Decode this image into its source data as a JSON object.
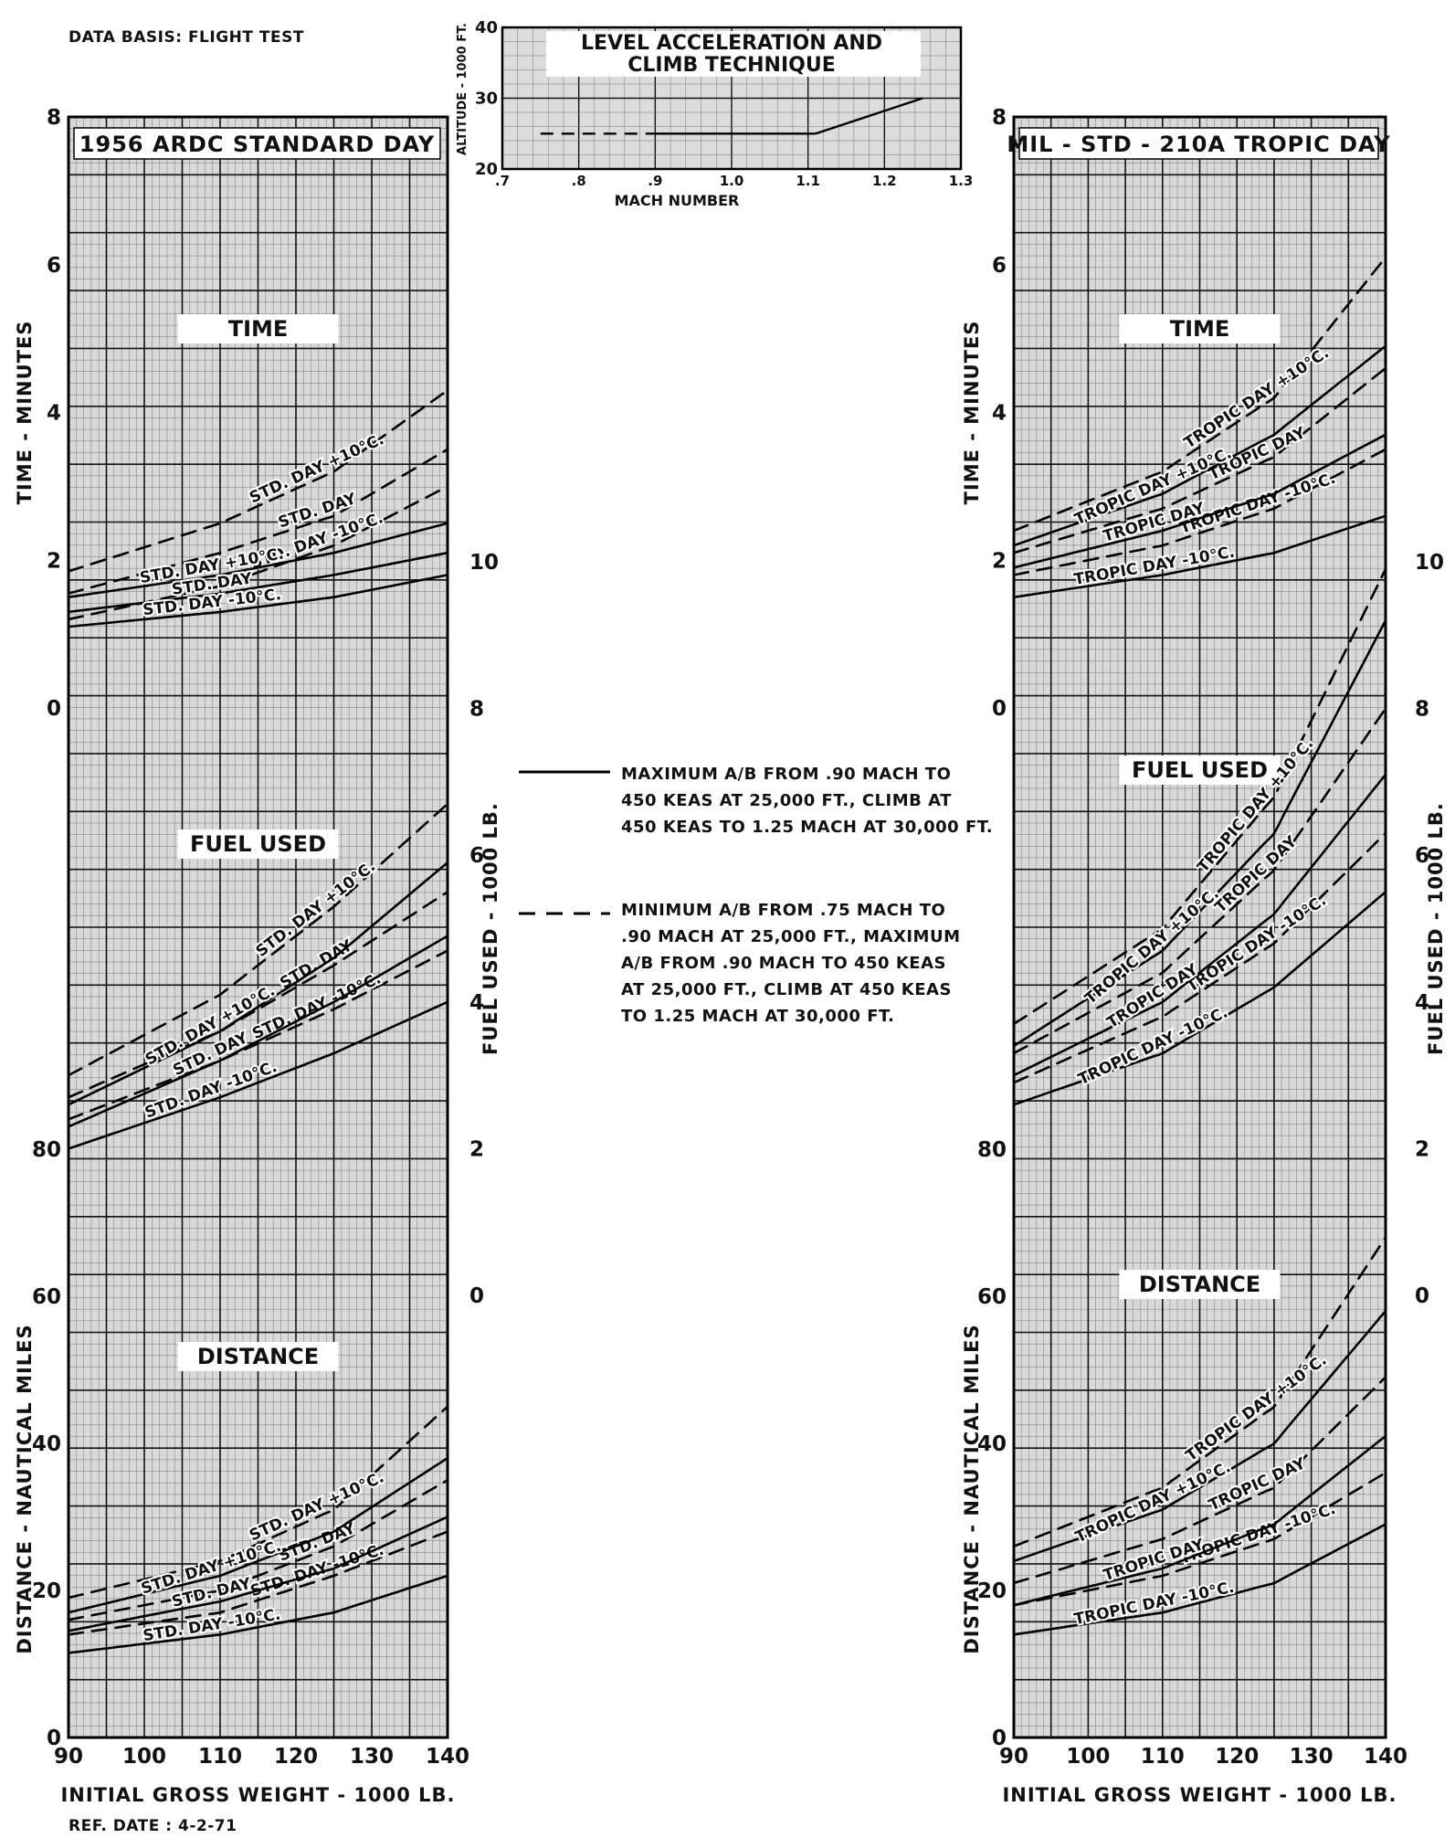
{
  "notes": {
    "data_basis": "DATA BASIS: FLIGHT TEST",
    "ref_date": "REF. DATE : 4-2-71"
  },
  "legend": {
    "solid_lines": [
      "MAXIMUM A/B FROM .90 MACH TO",
      "450 KEAS AT 25,000 FT., CLIMB AT",
      "450 KEAS TO 1.25 MACH AT 30,000 FT."
    ],
    "dashed_lines": [
      "MINIMUM A/B FROM .75 MACH TO",
      ".90 MACH AT 25,000 FT., MAXIMUM",
      "A/B FROM .90 MACH TO 450 KEAS",
      "AT 25,000 FT., CLIMB AT 450 KEAS",
      "TO 1.25 MACH AT 30,000 FT."
    ]
  },
  "chart_data": [
    {
      "type": "line",
      "title": "LEVEL ACCELERATION AND CLIMB TECHNIQUE",
      "title_lines": [
        "LEVEL ACCELERATION AND",
        "CLIMB TECHNIQUE"
      ],
      "xlabel": "MACH NUMBER",
      "ylabel": "ALTITUDE - 1000 FT.",
      "xlim": [
        0.7,
        1.3
      ],
      "ylim": [
        20,
        40
      ],
      "xticks": [
        0.7,
        0.8,
        0.9,
        1.0,
        1.1,
        1.2,
        1.3
      ],
      "xtick_labels": [
        ".7",
        ".8",
        ".9",
        "1.0",
        "1.1",
        "1.2",
        "1.3"
      ],
      "yticks": [
        20,
        30,
        40
      ],
      "ytick_labels": [
        "20",
        "30",
        "40"
      ],
      "grid": true,
      "series": [
        {
          "style": "dashed",
          "x": [
            0.75,
            0.9
          ],
          "y": [
            25,
            25
          ]
        },
        {
          "style": "solid",
          "x": [
            0.9,
            1.11,
            1.25
          ],
          "y": [
            25,
            25,
            30
          ]
        }
      ]
    },
    {
      "type": "line",
      "panel_title": "1956 ARDC STANDARD DAY",
      "xlabel": "INITIAL GROSS WEIGHT - 1000 LB.",
      "xlim": [
        90,
        140
      ],
      "xticks": [
        90,
        100,
        110,
        120,
        130,
        140
      ],
      "grid": true,
      "sections": [
        {
          "name": "TIME",
          "ylabel": "TIME - MINUTES",
          "axis_side": "left",
          "ylim": [
            0,
            8
          ],
          "yticks": [
            0,
            2,
            4,
            6,
            8
          ],
          "series": [
            {
              "label": "STD. DAY +10°C.",
              "style": "dashed",
              "x": [
                90,
                110,
                125,
                140
              ],
              "y": [
                1.85,
                2.5,
                3.2,
                4.3
              ]
            },
            {
              "label": "STD. DAY",
              "style": "dashed",
              "x": [
                90,
                110,
                125,
                140
              ],
              "y": [
                1.55,
                2.1,
                2.6,
                3.5
              ]
            },
            {
              "label": "STD. DAY -10°C.",
              "style": "dashed",
              "x": [
                90,
                110,
                125,
                140
              ],
              "y": [
                1.2,
                1.65,
                2.2,
                3.0
              ]
            },
            {
              "label": "STD. DAY +10°C.",
              "style": "solid",
              "x": [
                90,
                110,
                125,
                140
              ],
              "y": [
                1.5,
                1.8,
                2.1,
                2.5
              ]
            },
            {
              "label": "STD. DAY",
              "style": "solid",
              "x": [
                90,
                110,
                125,
                140
              ],
              "y": [
                1.3,
                1.55,
                1.8,
                2.1
              ]
            },
            {
              "label": "STD. DAY -10°C.",
              "style": "solid",
              "x": [
                90,
                110,
                125,
                140
              ],
              "y": [
                1.1,
                1.3,
                1.5,
                1.8
              ]
            }
          ]
        },
        {
          "name": "FUEL USED",
          "ylabel": "FUEL USED - 1000 LB.",
          "axis_side": "right",
          "ylim": [
            0,
            10
          ],
          "yticks": [
            0,
            2,
            4,
            6,
            8,
            10
          ],
          "series": [
            {
              "label": "STD. DAY +10°C.",
              "style": "dashed",
              "x": [
                90,
                110,
                125,
                140
              ],
              "y": [
                3.0,
                4.1,
                5.3,
                6.7
              ]
            },
            {
              "label": "STD. DAY",
              "style": "dashed",
              "x": [
                90,
                110,
                125,
                140
              ],
              "y": [
                2.7,
                3.6,
                4.5,
                5.5
              ]
            },
            {
              "label": "STD. DAY -10°C.",
              "style": "dashed",
              "x": [
                90,
                110,
                125,
                140
              ],
              "y": [
                2.4,
                3.2,
                3.9,
                4.7
              ]
            },
            {
              "label": "STD. DAY +10°C.",
              "style": "solid",
              "x": [
                90,
                110,
                125,
                140
              ],
              "y": [
                2.6,
                3.6,
                4.6,
                5.9
              ]
            },
            {
              "label": "STD. DAY",
              "style": "solid",
              "x": [
                90,
                110,
                125,
                140
              ],
              "y": [
                2.3,
                3.2,
                4.0,
                4.9
              ]
            },
            {
              "label": "STD. DAY -10°C.",
              "style": "solid",
              "x": [
                90,
                110,
                125,
                140
              ],
              "y": [
                2.0,
                2.7,
                3.3,
                4.0
              ]
            }
          ]
        },
        {
          "name": "DISTANCE",
          "ylabel": "DISTANCE - NAUTICAL MILES",
          "axis_side": "left",
          "ylim": [
            0,
            80
          ],
          "yticks": [
            0,
            20,
            40,
            60,
            80
          ],
          "series": [
            {
              "label": "STD. DAY +10°C.",
              "style": "dashed",
              "x": [
                90,
                110,
                125,
                140
              ],
              "y": [
                19,
                24,
                31,
                45
              ]
            },
            {
              "label": "STD. DAY",
              "style": "dashed",
              "x": [
                90,
                110,
                125,
                140
              ],
              "y": [
                16,
                20,
                26,
                35
              ]
            },
            {
              "label": "STD. DAY -10°C.",
              "style": "dashed",
              "x": [
                90,
                110,
                125,
                140
              ],
              "y": [
                14,
                17,
                22,
                28
              ]
            },
            {
              "label": "STD. DAY +10°C.",
              "style": "solid",
              "x": [
                90,
                110,
                125,
                140
              ],
              "y": [
                17,
                22,
                28,
                38
              ]
            },
            {
              "label": "STD. DAY",
              "style": "solid",
              "x": [
                90,
                110,
                125,
                140
              ],
              "y": [
                14.5,
                18.5,
                23,
                30
              ]
            },
            {
              "label": "STD. DAY -10°C.",
              "style": "solid",
              "x": [
                90,
                110,
                125,
                140
              ],
              "y": [
                11.5,
                14,
                17,
                22
              ]
            }
          ]
        }
      ]
    },
    {
      "type": "line",
      "panel_title": "MIL - STD - 210A TROPIC DAY",
      "xlabel": "INITIAL GROSS WEIGHT - 1000 LB.",
      "xlim": [
        90,
        140
      ],
      "xticks": [
        90,
        100,
        110,
        120,
        130,
        140
      ],
      "grid": true,
      "sections": [
        {
          "name": "TIME",
          "ylabel": "TIME - MINUTES",
          "axis_side": "left",
          "ylim": [
            0,
            8
          ],
          "yticks": [
            0,
            2,
            4,
            6,
            8
          ],
          "series": [
            {
              "label": "TROPIC DAY +10°C.",
              "style": "dashed",
              "x": [
                90,
                110,
                125,
                140
              ],
              "y": [
                2.4,
                3.2,
                4.2,
                6.1
              ]
            },
            {
              "label": "TROPIC DAY",
              "style": "dashed",
              "x": [
                90,
                110,
                125,
                140
              ],
              "y": [
                2.1,
                2.7,
                3.4,
                4.6
              ]
            },
            {
              "label": "TROPIC DAY -10°C.",
              "style": "dashed",
              "x": [
                90,
                110,
                125,
                140
              ],
              "y": [
                1.8,
                2.2,
                2.7,
                3.5
              ]
            },
            {
              "label": "TROPIC DAY +10°C.",
              "style": "solid",
              "x": [
                90,
                110,
                125,
                140
              ],
              "y": [
                2.2,
                2.9,
                3.7,
                4.9
              ]
            },
            {
              "label": "TROPIC DAY",
              "style": "solid",
              "x": [
                90,
                110,
                125,
                140
              ],
              "y": [
                1.9,
                2.4,
                2.9,
                3.7
              ]
            },
            {
              "label": "TROPIC DAY -10°C.",
              "style": "solid",
              "x": [
                90,
                110,
                125,
                140
              ],
              "y": [
                1.5,
                1.8,
                2.1,
                2.6
              ]
            }
          ]
        },
        {
          "name": "FUEL USED",
          "ylabel": "FUEL USED - 1000 LB.",
          "axis_side": "right",
          "ylim": [
            0,
            10
          ],
          "yticks": [
            0,
            2,
            4,
            6,
            8,
            10
          ],
          "series": [
            {
              "label": "TROPIC DAY +10°C.",
              "style": "dashed",
              "x": [
                90,
                110,
                125,
                140
              ],
              "y": [
                3.7,
                5.0,
                6.8,
                9.9
              ]
            },
            {
              "label": "TROPIC DAY",
              "style": "dashed",
              "x": [
                90,
                110,
                125,
                140
              ],
              "y": [
                3.3,
                4.4,
                5.8,
                8.0
              ]
            },
            {
              "label": "TROPIC DAY -10°C.",
              "style": "dashed",
              "x": [
                90,
                110,
                125,
                140
              ],
              "y": [
                2.9,
                3.8,
                4.8,
                6.3
              ]
            },
            {
              "label": "TROPIC DAY +10°C.",
              "style": "solid",
              "x": [
                90,
                110,
                125,
                140
              ],
              "y": [
                3.4,
                4.7,
                6.3,
                9.2
              ]
            },
            {
              "label": "TROPIC DAY",
              "style": "solid",
              "x": [
                90,
                110,
                125,
                140
              ],
              "y": [
                3.0,
                4.0,
                5.2,
                7.1
              ]
            },
            {
              "label": "TROPIC DAY -10°C.",
              "style": "solid",
              "x": [
                90,
                110,
                125,
                140
              ],
              "y": [
                2.6,
                3.3,
                4.2,
                5.5
              ]
            }
          ]
        },
        {
          "name": "DISTANCE",
          "ylabel": "DISTANCE - NAUTICAL MILES",
          "axis_side": "left",
          "ylim": [
            0,
            80
          ],
          "yticks": [
            0,
            20,
            40,
            60,
            80
          ],
          "series": [
            {
              "label": "TROPIC DAY +10°C.",
              "style": "dashed",
              "x": [
                90,
                110,
                125,
                140
              ],
              "y": [
                26,
                34,
                45,
                68
              ]
            },
            {
              "label": "TROPIC DAY",
              "style": "dashed",
              "x": [
                90,
                110,
                125,
                140
              ],
              "y": [
                21,
                27,
                34,
                49
              ]
            },
            {
              "label": "TROPIC DAY -10°C.",
              "style": "dashed",
              "x": [
                90,
                110,
                125,
                140
              ],
              "y": [
                18,
                22,
                27,
                36
              ]
            },
            {
              "label": "TROPIC DAY +10°C.",
              "style": "solid",
              "x": [
                90,
                110,
                125,
                140
              ],
              "y": [
                24,
                31,
                40,
                58
              ]
            },
            {
              "label": "TROPIC DAY",
              "style": "solid",
              "x": [
                90,
                110,
                125,
                140
              ],
              "y": [
                18,
                23,
                29,
                41
              ]
            },
            {
              "label": "TROPIC DAY -10°C.",
              "style": "solid",
              "x": [
                90,
                110,
                125,
                140
              ],
              "y": [
                14,
                17,
                21,
                29
              ]
            }
          ]
        }
      ]
    }
  ]
}
